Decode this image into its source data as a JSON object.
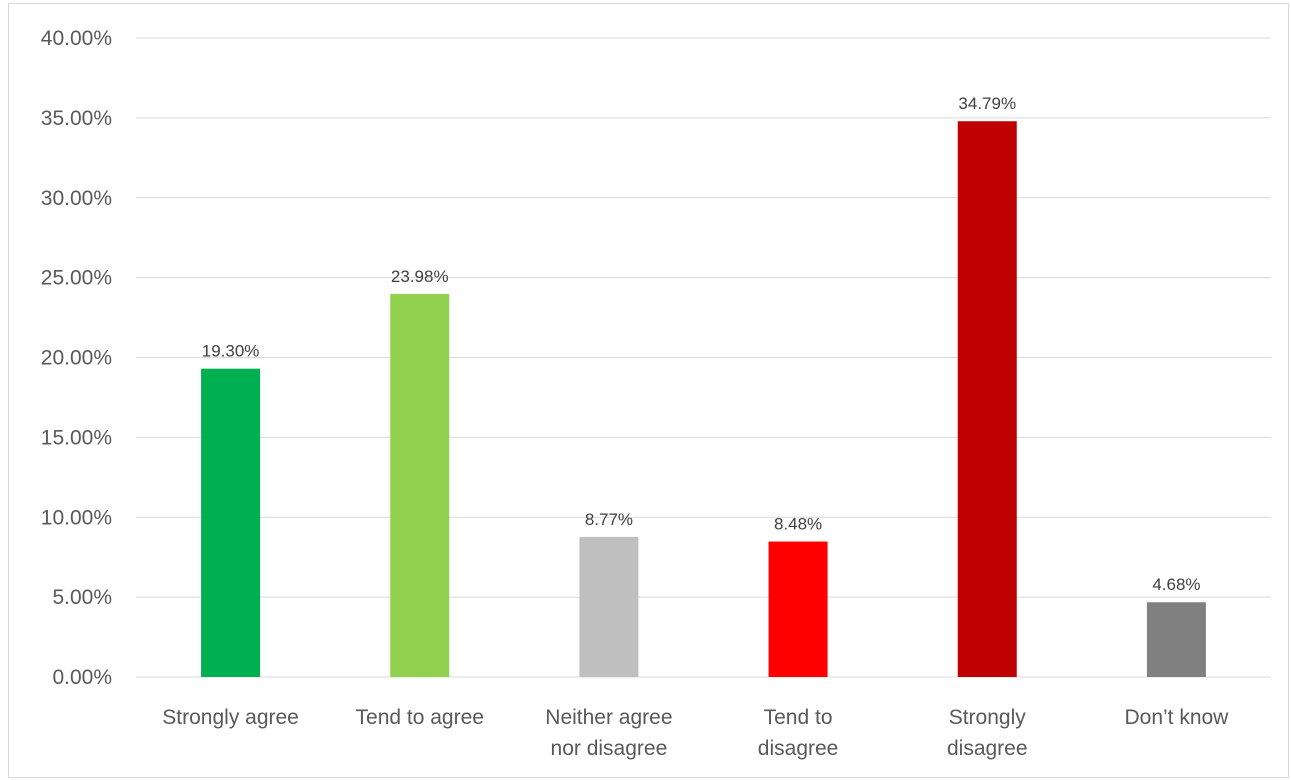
{
  "chart_data": {
    "type": "bar",
    "title": "",
    "xlabel": "",
    "ylabel": "",
    "categories": [
      [
        "Strongly agree"
      ],
      [
        "Tend to agree"
      ],
      [
        "Neither agree",
        "nor disagree"
      ],
      [
        "Tend to",
        "disagree"
      ],
      [
        "Strongly",
        "disagree"
      ],
      [
        "Don’t know"
      ]
    ],
    "values": [
      19.3,
      23.98,
      8.77,
      8.48,
      34.79,
      4.68
    ],
    "value_labels": [
      "19.30%",
      "23.98%",
      "8.77%",
      "8.48%",
      "34.79%",
      "4.68%"
    ],
    "colors": [
      "#00b050",
      "#92d050",
      "#bfbfbf",
      "#ff0000",
      "#c00000",
      "#808080"
    ],
    "ylim": [
      0,
      40
    ],
    "y_ticks": [
      0,
      5,
      10,
      15,
      20,
      25,
      30,
      35,
      40
    ],
    "y_tick_labels": [
      "0.00%",
      "5.00%",
      "10.00%",
      "15.00%",
      "20.00%",
      "25.00%",
      "30.00%",
      "35.00%",
      "40.00%"
    ],
    "grid": true,
    "legend": "none"
  }
}
